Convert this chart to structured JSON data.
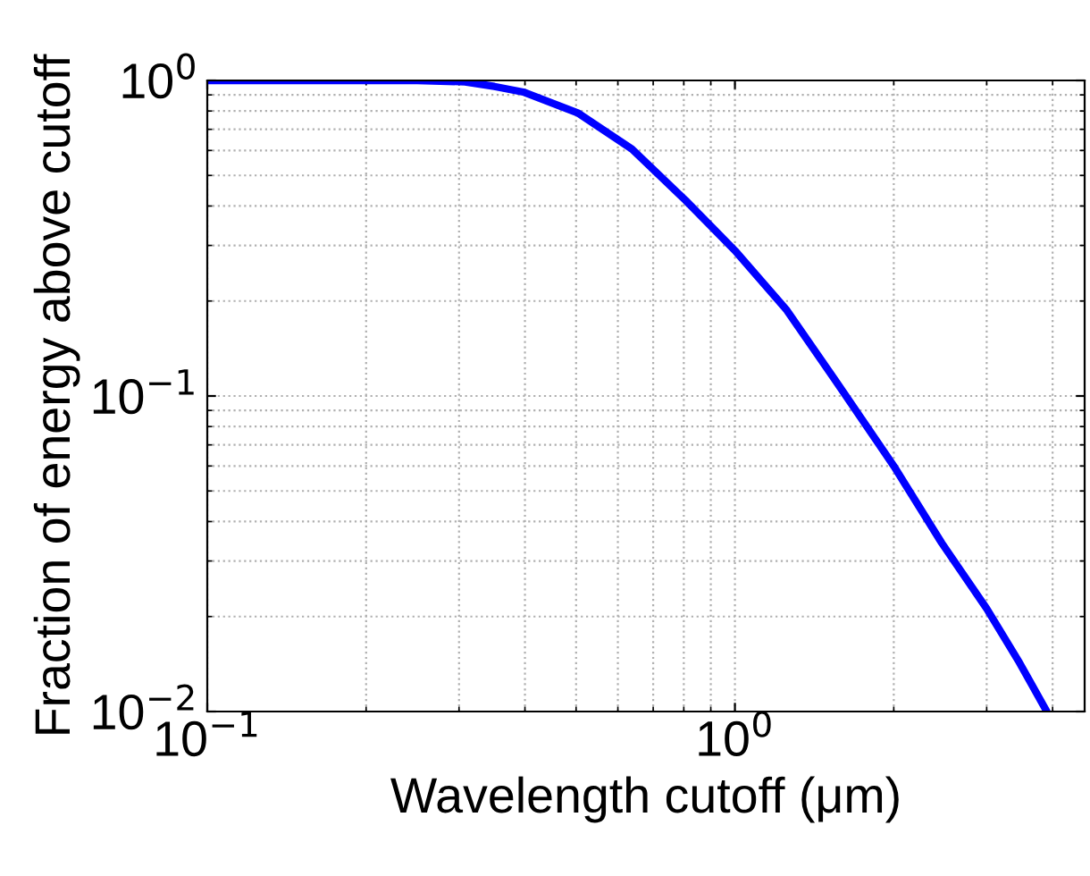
{
  "chart_data": {
    "type": "line",
    "xlabel": "Wavelength cutoff (μm)",
    "ylabel": "Fraction of energy above cutoff",
    "log": "xy",
    "grid": true,
    "xlim": [
      0.1,
      4.6
    ],
    "ylim": [
      0.01,
      1
    ],
    "xticks": [
      {
        "value": 0.1,
        "label": "10$^{−1}$"
      },
      {
        "value": 1,
        "label": "10$^{0}$"
      }
    ],
    "yticks": [
      {
        "value": 0.01,
        "label": "10$^{−2}$"
      },
      {
        "value": 0.1,
        "label": "10$^{−1}$"
      },
      {
        "value": 1,
        "label": "10$^{0}$"
      }
    ],
    "series": [
      {
        "color": "#0000ff",
        "x": [
          0.1,
          0.25,
          0.308,
          0.35,
          0.399,
          0.505,
          0.638,
          0.805,
          1.0,
          1.254,
          1.545,
          2.0,
          2.466,
          3.0,
          3.46,
          3.9
        ],
        "values": [
          1.0,
          1.0,
          0.99,
          0.957,
          0.917,
          0.787,
          0.606,
          0.418,
          0.289,
          0.187,
          0.113,
          0.06,
          0.0342,
          0.0212,
          0.0143,
          0.01
        ]
      }
    ]
  }
}
